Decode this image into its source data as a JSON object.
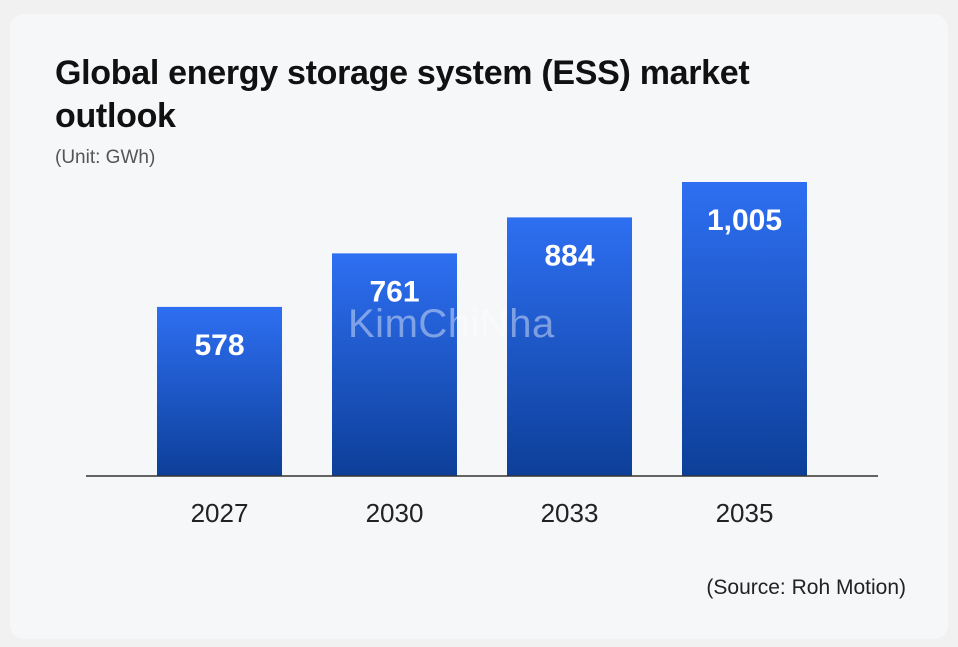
{
  "chart_data": {
    "type": "bar",
    "title": "Global energy storage system (ESS) market outlook",
    "subtitle": "(Unit: GWh)",
    "categories": [
      "2027",
      "2030",
      "2033",
      "2035"
    ],
    "values": [
      578,
      761,
      884,
      1005
    ],
    "value_labels": [
      "578",
      "761",
      "884",
      "1,005"
    ],
    "xlabel": "",
    "ylabel": "",
    "ylim": [
      0,
      1005
    ],
    "grid": false,
    "source": "(Source: Roh Motion)"
  },
  "watermark": "KimChiNha",
  "colors": {
    "bar_top": "#2e6ff2",
    "bar_bottom": "#0d3f99",
    "baseline": "#333333",
    "value_label": "#ffffff",
    "tick_label": "#222222"
  }
}
